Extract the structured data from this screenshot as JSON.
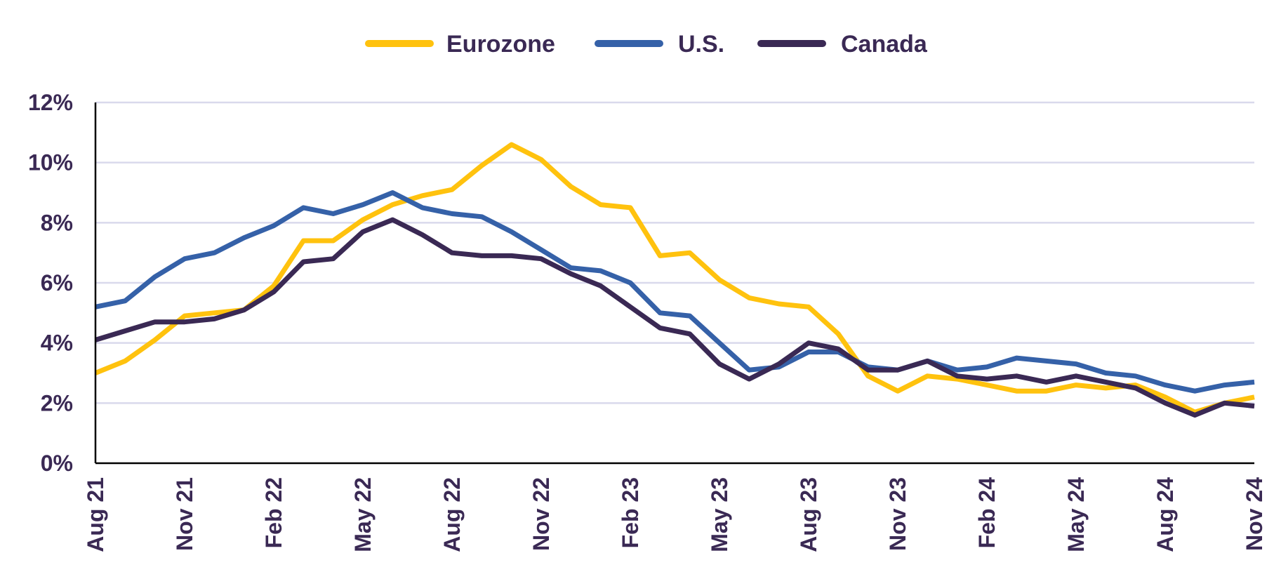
{
  "chart_data": {
    "type": "line",
    "title": "",
    "xlabel": "",
    "ylabel": "",
    "ylim": [
      0,
      12
    ],
    "yticks": [
      0,
      2,
      4,
      6,
      8,
      10,
      12
    ],
    "ytick_labels": [
      "0%",
      "2%",
      "4%",
      "6%",
      "8%",
      "10%",
      "12%"
    ],
    "grid": true,
    "legend_position": "top-center",
    "x": [
      "Aug 21",
      "Sep 21",
      "Oct 21",
      "Nov 21",
      "Dec 21",
      "Jan 22",
      "Feb 22",
      "Mar 22",
      "Apr 22",
      "May 22",
      "Jun 22",
      "Jul 22",
      "Aug 22",
      "Sep 22",
      "Oct 22",
      "Nov 22",
      "Dec 22",
      "Jan 23",
      "Feb 23",
      "Mar 23",
      "Apr 23",
      "May 23",
      "Jun 23",
      "Jul 23",
      "Aug 23",
      "Sep 23",
      "Oct 23",
      "Nov 23",
      "Dec 23",
      "Jan 24",
      "Feb 24",
      "Mar 24",
      "Apr 24",
      "May 24",
      "Jun 24",
      "Jul 24",
      "Aug 24",
      "Sep 24",
      "Oct 24",
      "Nov 24"
    ],
    "xtick_labels": [
      "Aug 21",
      "Nov 21",
      "Feb 22",
      "May 22",
      "Aug 22",
      "Nov 22",
      "Feb 23",
      "May 23",
      "Aug 23",
      "Nov 23",
      "Feb 24",
      "May 24",
      "Aug 24",
      "Nov 24"
    ],
    "series": [
      {
        "name": "Eurozone",
        "color": "#FFC20E",
        "values": [
          3.0,
          3.4,
          4.1,
          4.9,
          5.0,
          5.1,
          5.9,
          7.4,
          7.4,
          8.1,
          8.6,
          8.9,
          9.1,
          9.9,
          10.6,
          10.1,
          9.2,
          8.6,
          8.5,
          6.9,
          7.0,
          6.1,
          5.5,
          5.3,
          5.2,
          4.3,
          2.9,
          2.4,
          2.9,
          2.8,
          2.6,
          2.4,
          2.4,
          2.6,
          2.5,
          2.6,
          2.2,
          1.7,
          2.0,
          2.2
        ]
      },
      {
        "name": "U.S.",
        "color": "#3561A8",
        "values": [
          5.2,
          5.4,
          6.2,
          6.8,
          7.0,
          7.5,
          7.9,
          8.5,
          8.3,
          8.6,
          9.0,
          8.5,
          8.3,
          8.2,
          7.7,
          7.1,
          6.5,
          6.4,
          6.0,
          5.0,
          4.9,
          4.0,
          3.1,
          3.2,
          3.7,
          3.7,
          3.2,
          3.1,
          3.4,
          3.1,
          3.2,
          3.5,
          3.4,
          3.3,
          3.0,
          2.9,
          2.6,
          2.4,
          2.6,
          2.7
        ]
      },
      {
        "name": "Canada",
        "color": "#3A2954",
        "values": [
          4.1,
          4.4,
          4.7,
          4.7,
          4.8,
          5.1,
          5.7,
          6.7,
          6.8,
          7.7,
          8.1,
          7.6,
          7.0,
          6.9,
          6.9,
          6.8,
          6.3,
          5.9,
          5.2,
          4.5,
          4.3,
          3.3,
          2.8,
          3.3,
          4.0,
          3.8,
          3.1,
          3.1,
          3.4,
          2.9,
          2.8,
          2.9,
          2.7,
          2.9,
          2.7,
          2.5,
          2.0,
          1.6,
          2.0,
          1.9
        ]
      }
    ]
  }
}
